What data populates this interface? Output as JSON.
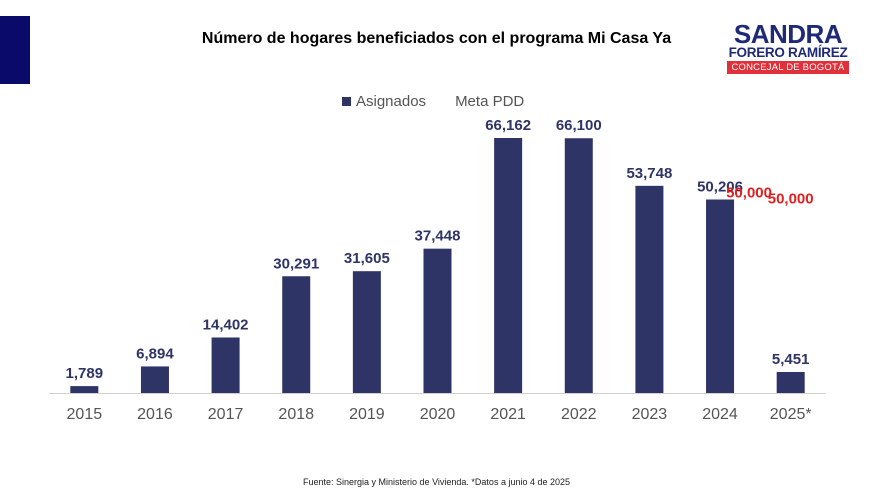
{
  "title": "Número de hogares beneficiados con el programa Mi Casa Ya",
  "logo": {
    "line1": "SANDRA",
    "line2": "FORERO RAMÍREZ",
    "line3": "CONCEJAL DE BOGOTÁ"
  },
  "colors": {
    "bar": "#2e3466",
    "target": "#e02020",
    "accent": "#0a0a6b"
  },
  "chart_data": {
    "type": "bar",
    "title": "Número de hogares beneficiados con el programa Mi Casa Ya",
    "categories": [
      "2015",
      "2016",
      "2017",
      "2018",
      "2019",
      "2020",
      "2021",
      "2022",
      "2023",
      "2024",
      "2025*"
    ],
    "series": [
      {
        "name": "Asignados",
        "values": [
          1789,
          6894,
          14402,
          30291,
          31605,
          37448,
          66162,
          66100,
          53748,
          50206,
          5451
        ],
        "labels": [
          "1,789",
          "6,894",
          "14,402",
          "30,291",
          "31,605",
          "37,448",
          "66,162",
          "66,100",
          "53,748",
          "50,206",
          "5,451"
        ]
      },
      {
        "name": "Meta PDD",
        "values": [
          null,
          null,
          null,
          null,
          null,
          null,
          null,
          null,
          null,
          50000,
          50000
        ],
        "labels": [
          "",
          "",
          "",
          "",
          "",
          "",
          "",
          "",
          "",
          "50,000",
          "50,000"
        ]
      }
    ],
    "legend_position": "top-center",
    "grid": false,
    "ylim": [
      0,
      70000
    ]
  },
  "source": "Fuente: Sinergia y Ministerio de Vivienda. *Datos a junio 4 de 2025"
}
